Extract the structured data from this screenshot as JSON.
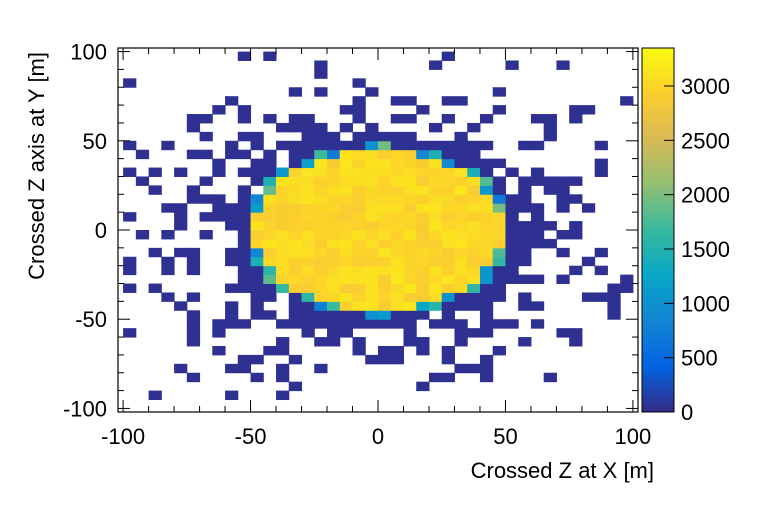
{
  "chart_data": {
    "type": "heatmap",
    "title": "",
    "xlabel": "Crossed Z at X [m]",
    "ylabel": "Crossed Z axis at Y [m]",
    "xlim": [
      -102,
      102
    ],
    "ylim": [
      -102,
      102
    ],
    "x_ticks": [
      -100,
      -50,
      0,
      50,
      100
    ],
    "y_ticks": [
      -100,
      -50,
      0,
      50,
      100
    ],
    "bin_width": 5,
    "colorbar": {
      "range": [
        0,
        3350
      ],
      "ticks": [
        0,
        500,
        1000,
        1500,
        2000,
        2500,
        3000
      ],
      "colormap": [
        "#352a87",
        "#0363e1",
        "#1485d4",
        "#06a7c6",
        "#38b99e",
        "#92bf73",
        "#d9ba56",
        "#fcce2e",
        "#f9fb0e"
      ]
    },
    "core_region": {
      "shape": "ellipse",
      "center": [
        0,
        0
      ],
      "radius_x": 52,
      "radius_y": 48,
      "peak_counts": 3100
    },
    "halo_counts": 50,
    "grid": false,
    "legend": "colorbar-right"
  }
}
